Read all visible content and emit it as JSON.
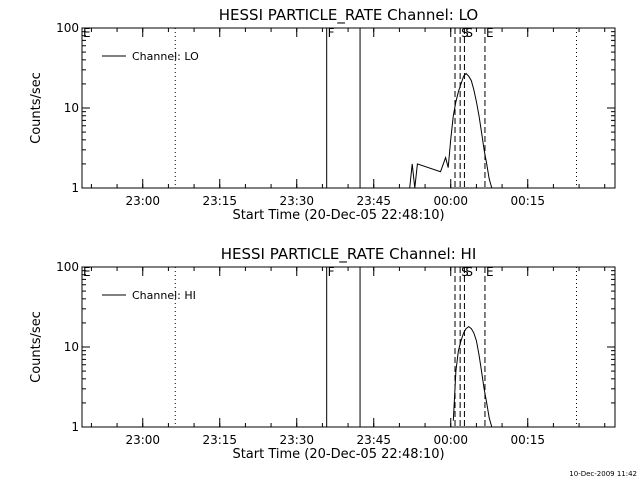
{
  "figure": {
    "timestamp": "10-Dec-2009 11:42"
  },
  "chart_data": [
    {
      "type": "line",
      "title": "HESSI PARTICLE_RATE Channel: LO",
      "xlabel": "Start Time (20-Dec-05 22:48:10)",
      "ylabel": "Counts/sec",
      "xlim": [
        "22:48:10",
        "00:32:00"
      ],
      "ylim": [
        1,
        100
      ],
      "yscale": "log",
      "xticks": [
        "23:00",
        "23:15",
        "23:30",
        "23:45",
        "00:00",
        "00:15"
      ],
      "yticks": [
        "1",
        "10",
        "100"
      ],
      "legend": "top-left",
      "series": [
        {
          "name": "Channel: LO",
          "x": [
            "23:52:00",
            "23:52:30",
            "23:53:00",
            "23:53:30",
            "23:58:00",
            "23:59:00",
            "23:59:30",
            "00:00:00",
            "00:00:30",
            "00:01:00",
            "00:01:30",
            "00:02:00",
            "00:02:30",
            "00:03:00",
            "00:03:30",
            "00:04:00",
            "00:04:30",
            "00:05:00",
            "00:05:30",
            "00:06:00",
            "00:06:30",
            "00:07:00",
            "00:07:30",
            "00:08:00"
          ],
          "y": [
            1,
            2,
            1,
            2,
            1.6,
            2.4,
            1.8,
            4,
            8,
            12,
            16,
            20,
            25,
            27,
            25,
            22,
            17,
            12,
            8,
            5,
            3,
            2,
            1.3,
            1
          ]
        }
      ],
      "vlines": [
        {
          "x": "23:06:20",
          "style": "dotted",
          "label": ""
        },
        {
          "x": "23:35:50",
          "style": "solid",
          "label": "F"
        },
        {
          "x": "23:42:20",
          "style": "solid",
          "label": ""
        },
        {
          "x": "00:00:50",
          "style": "dashed",
          "label": ""
        },
        {
          "x": "00:01:50",
          "style": "dashed",
          "label": ""
        },
        {
          "x": "00:02:40",
          "style": "dashed",
          "label": ""
        },
        {
          "x": "00:06:40",
          "style": "dashed",
          "label": ""
        },
        {
          "x": "00:24:30",
          "style": "dotted",
          "label": ""
        }
      ],
      "markers": [
        {
          "x": "22:48:10",
          "label": "E"
        },
        {
          "x": "23:35:50",
          "label": "F"
        },
        {
          "x": "00:01:50",
          "label": "S"
        },
        {
          "x": "00:02:40",
          "label": "S"
        },
        {
          "x": "00:06:40",
          "label": "E"
        }
      ]
    },
    {
      "type": "line",
      "title": "HESSI PARTICLE_RATE Channel: HI",
      "xlabel": "Start Time (20-Dec-05 22:48:10)",
      "ylabel": "Counts/sec",
      "xlim": [
        "22:48:10",
        "00:32:00"
      ],
      "ylim": [
        1,
        100
      ],
      "yscale": "log",
      "xticks": [
        "23:00",
        "23:15",
        "23:30",
        "23:45",
        "00:00",
        "00:15"
      ],
      "yticks": [
        "1",
        "10",
        "100"
      ],
      "legend": "top-left",
      "series": [
        {
          "name": "Channel: HI",
          "x": [
            "00:00:30",
            "00:01:00",
            "00:01:30",
            "00:02:00",
            "00:02:30",
            "00:03:00",
            "00:03:30",
            "00:04:00",
            "00:04:30",
            "00:05:00",
            "00:05:30",
            "00:06:00",
            "00:06:30",
            "00:07:00",
            "00:07:30",
            "00:08:00"
          ],
          "y": [
            1.2,
            5,
            9,
            12,
            15,
            17,
            18,
            17,
            15,
            12,
            8,
            5,
            3,
            2,
            1.3,
            1
          ]
        }
      ],
      "vlines": [
        {
          "x": "23:06:20",
          "style": "dotted",
          "label": ""
        },
        {
          "x": "23:35:50",
          "style": "solid",
          "label": "F"
        },
        {
          "x": "23:42:20",
          "style": "solid",
          "label": ""
        },
        {
          "x": "00:00:50",
          "style": "dashed",
          "label": ""
        },
        {
          "x": "00:01:50",
          "style": "dashed",
          "label": ""
        },
        {
          "x": "00:02:40",
          "style": "dashed",
          "label": ""
        },
        {
          "x": "00:06:40",
          "style": "dashed",
          "label": ""
        },
        {
          "x": "00:24:30",
          "style": "dotted",
          "label": ""
        }
      ],
      "markers": [
        {
          "x": "22:48:10",
          "label": "E"
        },
        {
          "x": "23:35:50",
          "label": "F"
        },
        {
          "x": "00:01:50",
          "label": "S"
        },
        {
          "x": "00:02:40",
          "label": "S"
        },
        {
          "x": "00:06:40",
          "label": "E"
        }
      ]
    }
  ]
}
